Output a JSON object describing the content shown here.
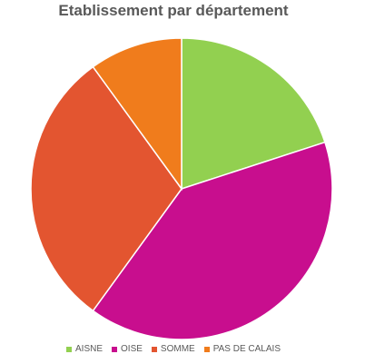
{
  "chart_data": {
    "type": "pie",
    "title": "Etablissement par département",
    "categories": [
      "AISNE",
      "OISE",
      "SOMME",
      "PAS DE CALAIS"
    ],
    "values": [
      20,
      40,
      30,
      10
    ],
    "colors": [
      "#92d050",
      "#c80e8e",
      "#e35530",
      "#f07c1c"
    ],
    "start_angle_deg": 0,
    "direction": "clockwise",
    "legend_position": "bottom"
  }
}
